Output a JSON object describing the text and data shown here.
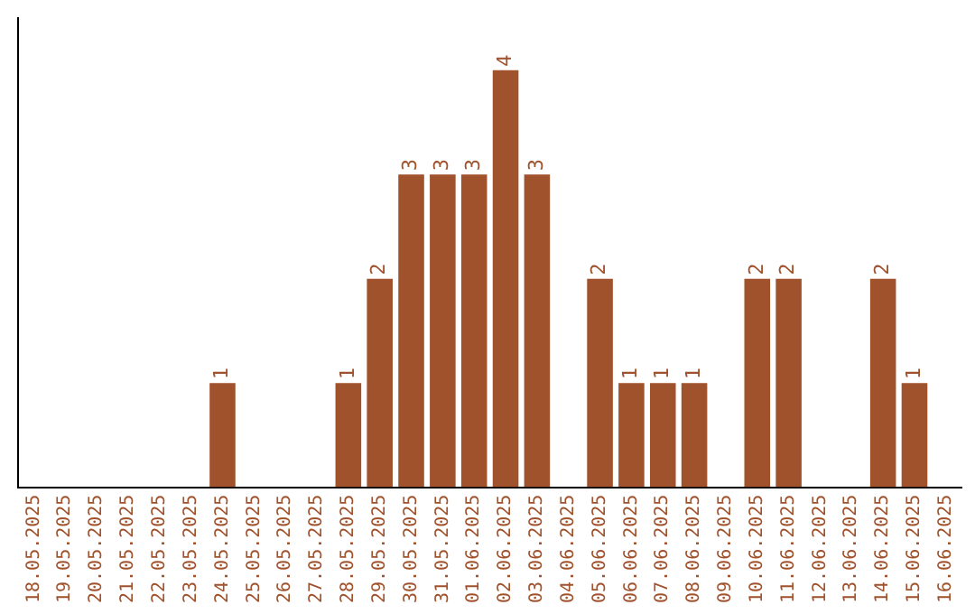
{
  "chart_data": {
    "type": "bar",
    "categories": [
      "18.05.2025",
      "19.05.2025",
      "20.05.2025",
      "21.05.2025",
      "22.05.2025",
      "23.05.2025",
      "24.05.2025",
      "25.05.2025",
      "26.05.2025",
      "27.05.2025",
      "28.05.2025",
      "29.05.2025",
      "30.05.2025",
      "31.05.2025",
      "01.06.2025",
      "02.06.2025",
      "03.06.2025",
      "04.06.2025",
      "05.06.2025",
      "06.06.2025",
      "07.06.2025",
      "08.06.2025",
      "09.06.2025",
      "10.06.2025",
      "11.06.2025",
      "12.06.2025",
      "13.06.2025",
      "14.06.2025",
      "15.06.2025",
      "16.06.2025"
    ],
    "values": [
      0,
      0,
      0,
      0,
      0,
      0,
      1,
      0,
      0,
      0,
      1,
      2,
      3,
      3,
      3,
      4,
      3,
      0,
      2,
      1,
      1,
      1,
      0,
      2,
      2,
      0,
      0,
      2,
      1,
      0
    ],
    "value_labels": [
      null,
      null,
      null,
      null,
      null,
      null,
      "1",
      null,
      null,
      null,
      "1",
      "2",
      "3",
      "3",
      "3",
      "4",
      "3",
      null,
      "2",
      "1",
      "1",
      "1",
      null,
      "2",
      "2",
      null,
      null,
      "2",
      "1",
      null
    ],
    "color": "#a0522d",
    "grid": false,
    "legend": false
  }
}
